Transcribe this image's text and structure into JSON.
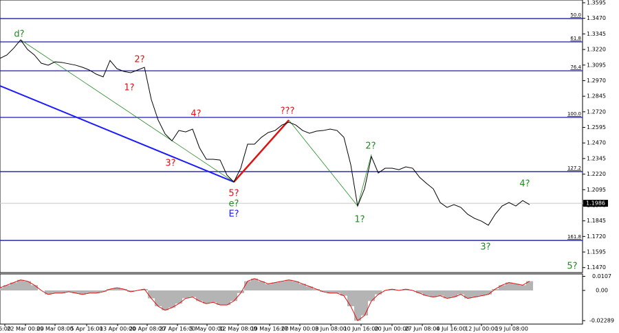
{
  "chart_data": {
    "type": "line",
    "price": {
      "color": "#000000",
      "values": [
        1.3149,
        1.3176,
        1.3231,
        1.3297,
        1.322,
        1.3176,
        1.311,
        1.3094,
        1.3121,
        1.3116,
        1.3105,
        1.3094,
        1.3077,
        1.3055,
        1.3022,
        1.3,
        1.3132,
        1.3066,
        1.3044,
        1.3033,
        1.3055,
        1.3077,
        1.2818,
        1.2653,
        1.2543,
        1.2487,
        1.257,
        1.2559,
        1.2581,
        1.2432,
        1.2339,
        1.2339,
        1.2333,
        1.2212,
        1.2157,
        1.2267,
        1.246,
        1.246,
        1.2515,
        1.2554,
        1.257,
        1.2614,
        1.2636,
        1.2614,
        1.257,
        1.2548,
        1.2565,
        1.257,
        1.2581,
        1.257,
        1.2515,
        1.2295,
        1.1964,
        1.2102,
        1.2361,
        1.2229,
        1.2267,
        1.2267,
        1.2256,
        1.2278,
        1.2267,
        1.2195,
        1.2146,
        1.2102,
        1.1992,
        1.1953,
        1.1975,
        1.1953,
        1.1898,
        1.1865,
        1.1843,
        1.181,
        1.1898,
        1.1964,
        1.1992,
        1.1964,
        1.2008,
        1.1975
      ]
    },
    "current_price": 1.1986,
    "ylim": [
      1.1441,
      1.3617
    ],
    "yticks": [
      1.3595,
      {
        "value": 1.347,
        "label": "1.3470"
      },
      1.3345,
      {
        "value": 1.322,
        "label": "1.3220"
      },
      1.3095,
      {
        "value": 1.297,
        "label": "1.2970"
      },
      1.2845,
      {
        "value": 1.272,
        "label": "1.2720"
      },
      1.2595,
      {
        "value": 1.247,
        "label": "1.2470"
      },
      1.2345,
      {
        "value": 1.222,
        "label": "1.2220"
      },
      1.2095,
      {
        "value": 1.197,
        "label": "1.1970"
      },
      1.1845,
      {
        "value": 1.172,
        "label": "1.1720"
      },
      1.1595,
      {
        "value": 1.147,
        "label": "1.1470"
      }
    ],
    "fib_color": "#1a1ab4",
    "fib_levels": [
      {
        "label": "50.0",
        "value": 1.3468
      },
      {
        "label": "61.8",
        "value": 1.3281
      },
      {
        "label": "76.4",
        "value": 1.3049
      },
      {
        "label": "100.0",
        "value": 1.2675
      },
      {
        "label": "127.2",
        "value": 1.224
      },
      {
        "label": "161.8",
        "value": 1.1688
      }
    ],
    "annotations": [
      {
        "text": "d?",
        "color": "#1f8a1f"
      },
      {
        "text": "2?",
        "color": "#e01010"
      },
      {
        "text": "1?",
        "color": "#e01010"
      },
      {
        "text": "4?",
        "color": "#e01010"
      },
      {
        "text": "3?",
        "color": "#e01010"
      },
      {
        "text": "???",
        "color": "#e01010"
      },
      {
        "text": "5?",
        "color": "#e01010"
      },
      {
        "text": "e?",
        "color": "#1f8a1f"
      },
      {
        "text": "E?",
        "color": "#1a1aff"
      },
      {
        "text": "2?",
        "color": "#1f8a1f"
      },
      {
        "text": "1?",
        "color": "#1f8a1f"
      },
      {
        "text": "3?",
        "color": "#1f8a1f"
      },
      {
        "text": "4?",
        "color": "#1f8a1f"
      },
      {
        "text": "5?",
        "color": "#1f8a1f"
      }
    ],
    "x_labels": [
      "6:00",
      "22 Mar 00:00",
      "29 Mar 08:00",
      "5 Apr 16:00",
      "13 Apr 00:00",
      "20 Apr 08:00",
      "27 Apr 16:00",
      "5 May 00:00",
      "12 May 08:00",
      "19 May 16:00",
      "27 May 00:00",
      "3 Jun 08:00",
      "10 Jun 16:00",
      "20 Jun 00:00",
      "27 Jun 08:00",
      "4 Jul 16:00",
      "12 Jul 00:00",
      "19 Jul 08:00"
    ],
    "oscillator": {
      "bar_color": "#b4b4b4",
      "line_color": "#e01010",
      "ylim": [
        -0.0255,
        0.0125
      ],
      "yticks": [
        0.0107,
        {
          "value": 0,
          "label": "0.00"
        },
        -0.02289
      ],
      "values": [
        0.002,
        0.004,
        0.006,
        0.008,
        0.007,
        0.004,
        0.0,
        -0.003,
        -0.002,
        -0.002,
        -0.001,
        -0.002,
        -0.003,
        -0.002,
        -0.002,
        -0.001,
        0.001,
        0.002,
        0.001,
        -0.001,
        0.0,
        0.001,
        -0.006,
        -0.012,
        -0.015,
        -0.013,
        -0.01,
        -0.006,
        -0.005,
        -0.008,
        -0.01,
        -0.009,
        -0.011,
        -0.011,
        -0.008,
        -0.002,
        0.007,
        0.009,
        0.007,
        0.005,
        0.006,
        0.007,
        0.008,
        0.007,
        0.005,
        0.003,
        0.001,
        -0.001,
        -0.002,
        -0.002,
        -0.004,
        -0.012,
        -0.02289,
        -0.019,
        -0.008,
        -0.003,
        0.0,
        0.001,
        0.0,
        0.001,
        0.0,
        -0.002,
        -0.004,
        -0.005,
        -0.004,
        -0.006,
        -0.005,
        -0.003,
        -0.006,
        -0.005,
        -0.004,
        -0.003,
        0.001,
        0.004,
        0.006,
        0.005,
        0.004,
        0.007
      ]
    }
  }
}
